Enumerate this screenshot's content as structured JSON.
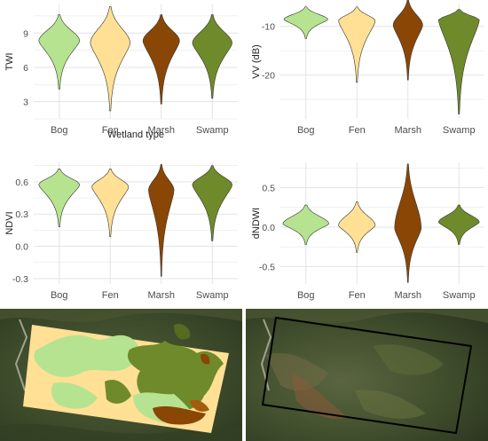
{
  "colors": {
    "Bog": "#b6e38f",
    "Fen": "#ffe095",
    "Marsh": "#8a4605",
    "Swamp": "#6f8a2a",
    "grid": "#e3e3e3",
    "text": "#4d4d4d",
    "satellite": "#3f4a2c",
    "box": "#000000"
  },
  "chart_data": [
    {
      "type": "violin",
      "categories": [
        "Bog",
        "Fen",
        "Marsh",
        "Swamp"
      ],
      "title": "",
      "xlabel": "Wetland type",
      "ylabel": "TWI",
      "ylim": [
        1.5,
        11.5
      ],
      "yticks": [
        3,
        6,
        9
      ],
      "tick_labels": [
        "3",
        "6",
        "9"
      ],
      "grid": true,
      "series": [
        {
          "category": "Bog",
          "min": 4.1,
          "max": 10.6,
          "mode": 8.3,
          "width": 0.8
        },
        {
          "category": "Fen",
          "min": 2.2,
          "max": 11.3,
          "mode": 8.1,
          "width": 0.78
        },
        {
          "category": "Marsh",
          "min": 2.8,
          "max": 10.6,
          "mode": 8.3,
          "width": 0.72
        },
        {
          "category": "Swamp",
          "min": 3.3,
          "max": 10.6,
          "mode": 8.1,
          "width": 0.78
        }
      ]
    },
    {
      "type": "violin",
      "categories": [
        "Bog",
        "Fen",
        "Marsh",
        "Swamp"
      ],
      "title": "",
      "xlabel": "",
      "ylabel": "VV (dB)",
      "ylim": [
        -29,
        -5.5
      ],
      "yticks": [
        -10,
        -20
      ],
      "tick_labels": [
        "-10",
        "-20"
      ],
      "grid": true,
      "series": [
        {
          "category": "Bog",
          "min": -12.5,
          "max": -6.0,
          "mode": -8.6,
          "width": 0.86
        },
        {
          "category": "Fen",
          "min": -21.5,
          "max": -6.0,
          "mode": -8.9,
          "width": 0.72
        },
        {
          "category": "Marsh",
          "min": -21.0,
          "max": -4.5,
          "mode": -9.8,
          "width": 0.58
        },
        {
          "category": "Swamp",
          "min": -28.0,
          "max": -6.5,
          "mode": -8.7,
          "width": 0.8
        }
      ]
    },
    {
      "type": "violin",
      "categories": [
        "Bog",
        "Fen",
        "Marsh",
        "Swamp"
      ],
      "title": "",
      "xlabel": "",
      "ylabel": "NDVI",
      "ylim": [
        -0.35,
        0.78
      ],
      "yticks": [
        0.6,
        0.3,
        0.0,
        -0.3
      ],
      "tick_labels": [
        "0.6",
        "0.3",
        "0.0",
        "-0.3"
      ],
      "grid": true,
      "series": [
        {
          "category": "Bog",
          "min": 0.18,
          "max": 0.72,
          "mode": 0.57,
          "width": 0.8
        },
        {
          "category": "Fen",
          "min": 0.09,
          "max": 0.72,
          "mode": 0.55,
          "width": 0.72
        },
        {
          "category": "Marsh",
          "min": -0.28,
          "max": 0.76,
          "mode": 0.52,
          "width": 0.5
        },
        {
          "category": "Swamp",
          "min": 0.05,
          "max": 0.75,
          "mode": 0.57,
          "width": 0.78
        }
      ]
    },
    {
      "type": "violin",
      "categories": [
        "Bog",
        "Fen",
        "Marsh",
        "Swamp"
      ],
      "title": "",
      "xlabel": "",
      "ylabel": "dNDWI",
      "ylim": [
        -0.72,
        0.82
      ],
      "yticks": [
        0.5,
        0.0,
        -0.5
      ],
      "tick_labels": [
        "0.5",
        "0.0",
        "-0.5"
      ],
      "grid": true,
      "series": [
        {
          "category": "Bog",
          "min": -0.22,
          "max": 0.28,
          "mode": 0.04,
          "width": 0.9
        },
        {
          "category": "Fen",
          "min": -0.32,
          "max": 0.32,
          "mode": 0.02,
          "width": 0.72
        },
        {
          "category": "Marsh",
          "min": -0.7,
          "max": 0.8,
          "mode": -0.02,
          "width": 0.52
        },
        {
          "category": "Swamp",
          "min": -0.22,
          "max": 0.28,
          "mode": 0.06,
          "width": 0.8
        }
      ]
    }
  ],
  "maps": [
    {
      "name": "classified-wetland-map"
    },
    {
      "name": "satellite-study-area-map"
    }
  ]
}
